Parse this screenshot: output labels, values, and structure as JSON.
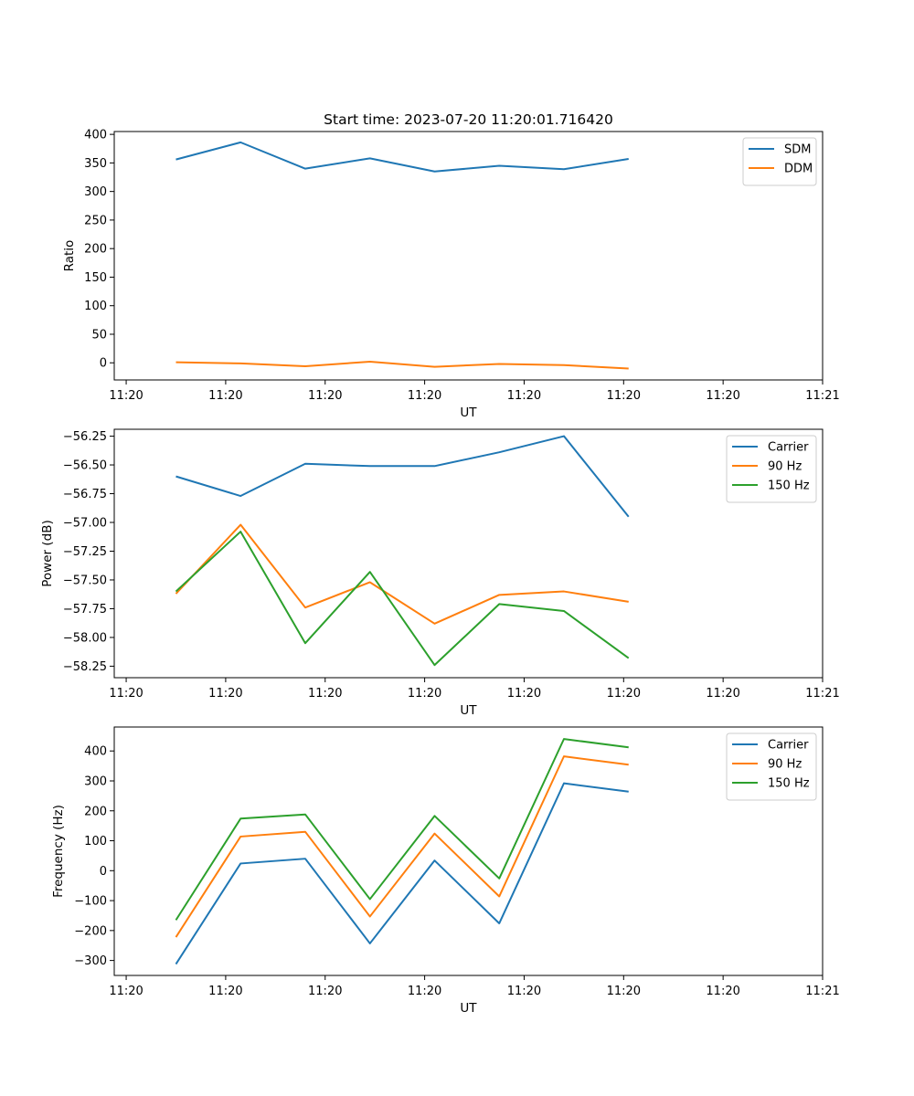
{
  "title": "Start time: 2023-07-20 11:20:01.716420",
  "chart_data": [
    {
      "type": "line",
      "ylabel": "Ratio",
      "xlabel": "UT",
      "x_tick_labels": [
        "11:20",
        "11:20",
        "11:20",
        "11:20",
        "11:20",
        "11:20",
        "11:20",
        "11:21"
      ],
      "y_ticks": [
        0,
        50,
        100,
        150,
        200,
        250,
        300,
        350,
        400
      ],
      "x_tick_positions": [
        -0.5,
        0.5,
        1.5,
        2.5,
        3.5,
        4.5,
        5.5,
        6.5
      ],
      "xlim": [
        -0.62,
        6.5
      ],
      "ylim": [
        -30,
        405
      ],
      "x": [
        0,
        0.65,
        1.3,
        1.95,
        2.6,
        3.25,
        3.9,
        4.55
      ],
      "series": [
        {
          "name": "SDM",
          "color": "#1f77b4",
          "values": [
            356,
            386,
            340,
            358,
            335,
            345,
            339,
            357
          ]
        },
        {
          "name": "DDM",
          "color": "#ff7f0e",
          "values": [
            1,
            -1,
            -6,
            2,
            -7,
            -2,
            -4,
            -10
          ]
        }
      ],
      "legend": "upper right"
    },
    {
      "type": "line",
      "ylabel": "Power (dB)",
      "xlabel": "UT",
      "x_tick_labels": [
        "11:20",
        "11:20",
        "11:20",
        "11:20",
        "11:20",
        "11:20",
        "11:20",
        "11:21"
      ],
      "y_ticks": [
        -58.25,
        -58.0,
        -57.75,
        -57.5,
        -57.25,
        -57.0,
        -56.75,
        -56.5,
        -56.25
      ],
      "y_tick_labels": [
        "−58.25",
        "−58.00",
        "−57.75",
        "−57.50",
        "−57.25",
        "−57.00",
        "−56.75",
        "−56.50",
        "−56.25"
      ],
      "x_tick_positions": [
        -0.5,
        0.5,
        1.5,
        2.5,
        3.5,
        4.5,
        5.5,
        6.5
      ],
      "xlim": [
        -0.62,
        6.5
      ],
      "ylim": [
        -58.35,
        -56.19
      ],
      "x": [
        0,
        0.65,
        1.3,
        1.95,
        2.6,
        3.25,
        3.9,
        4.55
      ],
      "series": [
        {
          "name": "Carrier",
          "color": "#1f77b4",
          "values": [
            -56.6,
            -56.77,
            -56.49,
            -56.51,
            -56.51,
            -56.39,
            -56.25,
            -56.95
          ]
        },
        {
          "name": "90 Hz",
          "color": "#ff7f0e",
          "values": [
            -57.62,
            -57.02,
            -57.74,
            -57.52,
            -57.88,
            -57.63,
            -57.6,
            -57.69
          ]
        },
        {
          "name": "150 Hz",
          "color": "#2ca02c",
          "values": [
            -57.6,
            -57.08,
            -58.05,
            -57.43,
            -58.24,
            -57.71,
            -57.77,
            -58.18
          ]
        }
      ],
      "legend": "upper right"
    },
    {
      "type": "line",
      "ylabel": "Frequency (Hz)",
      "xlabel": "UT",
      "x_tick_labels": [
        "11:20",
        "11:20",
        "11:20",
        "11:20",
        "11:20",
        "11:20",
        "11:20",
        "11:21"
      ],
      "y_ticks": [
        -300,
        -200,
        -100,
        0,
        100,
        200,
        300,
        400
      ],
      "y_tick_labels": [
        "−300",
        "−200",
        "−100",
        "0",
        "100",
        "200",
        "300",
        "400"
      ],
      "x_tick_positions": [
        -0.5,
        0.5,
        1.5,
        2.5,
        3.5,
        4.5,
        5.5,
        6.5
      ],
      "xlim": [
        -0.62,
        6.5
      ],
      "ylim": [
        -350,
        480
      ],
      "x": [
        0,
        0.65,
        1.3,
        1.95,
        2.6,
        3.25,
        3.9,
        4.55
      ],
      "series": [
        {
          "name": "Carrier",
          "color": "#1f77b4",
          "values": [
            -312,
            24,
            40,
            -243,
            34,
            -176,
            292,
            264
          ]
        },
        {
          "name": "90 Hz",
          "color": "#ff7f0e",
          "values": [
            -222,
            114,
            130,
            -153,
            124,
            -86,
            382,
            354
          ]
        },
        {
          "name": "150 Hz",
          "color": "#2ca02c",
          "values": [
            -165,
            174,
            188,
            -95,
            183,
            -26,
            440,
            412
          ]
        }
      ],
      "legend": "upper right"
    }
  ]
}
